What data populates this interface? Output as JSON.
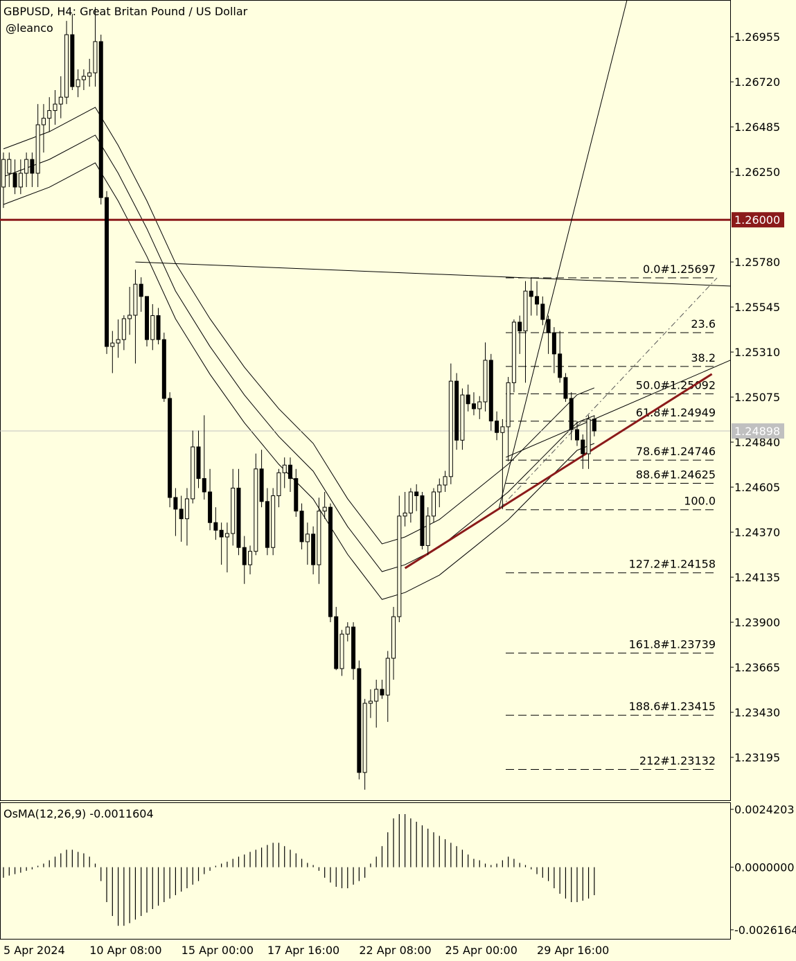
{
  "chart_data": [
    {
      "type": "candlestick",
      "title": "GBPUSD, H4:  Great Britan Pound / US Dollar",
      "subtitle": "@leanco",
      "up_color": "#ffffe0",
      "down_color": "#000000",
      "wick_color": "#000000",
      "categories": [
        "5 Apr 2024",
        null,
        null,
        null,
        null,
        null,
        null,
        null,
        null,
        null,
        null,
        null,
        null,
        null,
        null,
        "10 Apr 08:00",
        null,
        null,
        null,
        null,
        null,
        null,
        null,
        null,
        null,
        null,
        null,
        null,
        null,
        null,
        null,
        "15 Apr 00:00",
        null,
        null,
        null,
        null,
        null,
        null,
        null,
        null,
        null,
        null,
        null,
        null,
        null,
        null,
        "17 Apr 16:00",
        null,
        null,
        null,
        null,
        null,
        null,
        null,
        null,
        null,
        null,
        null,
        null,
        null,
        null,
        null,
        "22 Apr 08:00",
        null,
        null,
        null,
        null,
        null,
        null,
        null,
        null,
        null,
        null,
        null,
        null,
        null,
        null,
        "25 Apr 00:00",
        null,
        null,
        null,
        null,
        null,
        null,
        null,
        null,
        null,
        null,
        null,
        null,
        null,
        null,
        null,
        "29 Apr 16:00",
        null,
        null,
        null,
        null,
        null,
        null,
        null,
        null,
        null,
        null
      ],
      "ohlc": [
        [
          1.26171,
          1.26351,
          1.26062,
          1.26315
        ],
        [
          1.26243,
          1.26351,
          1.26171,
          1.26315
        ],
        [
          1.26243,
          1.26315,
          1.26134,
          1.26171
        ],
        [
          1.26171,
          1.26315,
          1.26134,
          1.26243
        ],
        [
          1.26243,
          1.26351,
          1.26171,
          1.26315
        ],
        [
          1.26315,
          1.26351,
          1.26171,
          1.26243
        ],
        [
          1.26243,
          1.26604,
          1.26171,
          1.26496
        ],
        [
          1.26496,
          1.26604,
          1.26351,
          1.2653
        ],
        [
          1.2653,
          1.2664,
          1.2646,
          1.2657
        ],
        [
          1.2657,
          1.26677,
          1.26496,
          1.26604
        ],
        [
          1.26604,
          1.26749,
          1.2653,
          1.2664
        ],
        [
          1.2664,
          1.27038,
          1.26604,
          1.26966
        ],
        [
          1.26966,
          1.27074,
          1.26677,
          1.26695
        ],
        [
          1.26695,
          1.26785,
          1.2664,
          1.26731
        ],
        [
          1.26731,
          1.26785,
          1.26677,
          1.26749
        ],
        [
          1.26749,
          1.2684,
          1.26695,
          1.26767
        ],
        [
          1.26767,
          1.2711,
          1.26695,
          1.2693
        ],
        [
          1.2693,
          1.26966,
          1.2608,
          1.26116
        ],
        [
          1.26116,
          1.2615,
          1.253,
          1.25339
        ],
        [
          1.25339,
          1.2542,
          1.252,
          1.25357
        ],
        [
          1.25357,
          1.2548,
          1.2528,
          1.25375
        ],
        [
          1.25375,
          1.25502,
          1.2532,
          1.25484
        ],
        [
          1.25484,
          1.2565,
          1.254,
          1.25502
        ],
        [
          1.25502,
          1.2574,
          1.2525,
          1.25664
        ],
        [
          1.25664,
          1.257,
          1.2552,
          1.256
        ],
        [
          1.256,
          1.256,
          1.25339,
          1.25375
        ],
        [
          1.25375,
          1.2556,
          1.2532,
          1.255
        ],
        [
          1.255,
          1.2554,
          1.2535,
          1.25375
        ],
        [
          1.25375,
          1.25411,
          1.2505,
          1.25068
        ],
        [
          1.25068,
          1.251,
          1.245,
          1.24551
        ],
        [
          1.24551,
          1.246,
          1.2435,
          1.2449
        ],
        [
          1.2449,
          1.2456,
          1.2432,
          1.2444
        ],
        [
          1.2444,
          1.246,
          1.243,
          1.24544
        ],
        [
          1.24544,
          1.249,
          1.2452,
          1.24815
        ],
        [
          1.24815,
          1.249,
          1.246,
          1.2465
        ],
        [
          1.2465,
          1.2498,
          1.2454,
          1.2458
        ],
        [
          1.2458,
          1.247,
          1.2438,
          1.2442
        ],
        [
          1.2442,
          1.245,
          1.2433,
          1.2438
        ],
        [
          1.2438,
          1.2442,
          1.242,
          1.24345
        ],
        [
          1.24345,
          1.2442,
          1.2416,
          1.24363
        ],
        [
          1.24363,
          1.247,
          1.243,
          1.246
        ],
        [
          1.246,
          1.247,
          1.2425,
          1.2429
        ],
        [
          1.2429,
          1.2435,
          1.241,
          1.242
        ],
        [
          1.242,
          1.243,
          1.2415,
          1.2427
        ],
        [
          1.2427,
          1.2478,
          1.2425,
          1.247
        ],
        [
          1.247,
          1.248,
          1.245,
          1.2453
        ],
        [
          1.2453,
          1.246,
          1.2425,
          1.2429
        ],
        [
          1.2429,
          1.246,
          1.2425,
          1.2456
        ],
        [
          1.2456,
          1.247,
          1.245,
          1.2468
        ],
        [
          1.2468,
          1.2476,
          1.246,
          1.2472
        ],
        [
          1.2472,
          1.2476,
          1.2458,
          1.2465
        ],
        [
          1.2465,
          1.247,
          1.2445,
          1.2448
        ],
        [
          1.2448,
          1.2452,
          1.2428,
          1.2432
        ],
        [
          1.2432,
          1.2442,
          1.242,
          1.2436
        ],
        [
          1.2436,
          1.244,
          1.2415,
          1.242
        ],
        [
          1.242,
          1.2455,
          1.241,
          1.2448
        ],
        [
          1.2448,
          1.2458,
          1.2444,
          1.245
        ],
        [
          1.245,
          1.2452,
          1.239,
          1.23929
        ],
        [
          1.23929,
          1.2398,
          1.2365,
          1.23658
        ],
        [
          1.23658,
          1.2386,
          1.2362,
          1.23838
        ],
        [
          1.23838,
          1.239,
          1.238,
          1.23875
        ],
        [
          1.23875,
          1.239,
          1.236,
          1.23658
        ],
        [
          1.23658,
          1.237,
          1.2308,
          1.23116
        ],
        [
          1.23116,
          1.235,
          1.23026,
          1.23477
        ],
        [
          1.23477,
          1.2355,
          1.234,
          1.23488
        ],
        [
          1.23488,
          1.236,
          1.2335,
          1.2355
        ],
        [
          1.2355,
          1.236,
          1.235,
          1.2352
        ],
        [
          1.2352,
          1.2375,
          1.2338,
          1.23712
        ],
        [
          1.23712,
          1.2398,
          1.236,
          1.23929
        ],
        [
          1.23929,
          1.2456,
          1.239,
          1.24454
        ],
        [
          1.24454,
          1.2458,
          1.244,
          1.2447
        ],
        [
          1.2447,
          1.246,
          1.2442,
          1.2458
        ],
        [
          1.2458,
          1.2462,
          1.2448,
          1.2456
        ],
        [
          1.2456,
          1.2458,
          1.2428,
          1.243
        ],
        [
          1.243,
          1.245,
          1.2425,
          1.24454
        ],
        [
          1.24454,
          1.246,
          1.2442,
          1.2458
        ],
        [
          1.2458,
          1.2465,
          1.245,
          1.24616
        ],
        [
          1.24616,
          1.2469,
          1.2458,
          1.2466
        ],
        [
          1.2466,
          1.2525,
          1.2462,
          1.25158
        ],
        [
          1.25158,
          1.252,
          1.248,
          1.2485
        ],
        [
          1.2485,
          1.2512,
          1.248,
          1.25086
        ],
        [
          1.25086,
          1.2514,
          1.25,
          1.2504
        ],
        [
          1.2504,
          1.251,
          1.2498,
          1.25014
        ],
        [
          1.25014,
          1.2508,
          1.2496,
          1.2505
        ],
        [
          1.2505,
          1.2536,
          1.25,
          1.25267
        ],
        [
          1.25267,
          1.253,
          1.249,
          1.2495
        ],
        [
          1.2495,
          1.25,
          1.2485,
          1.2489
        ],
        [
          1.2489,
          1.2496,
          1.2449,
          1.2492
        ],
        [
          1.2492,
          1.2518,
          1.2474,
          1.2515
        ],
        [
          1.2515,
          1.2548,
          1.251,
          1.25466
        ],
        [
          1.25466,
          1.255,
          1.253,
          1.2542
        ],
        [
          1.2542,
          1.2568,
          1.2515,
          1.25628
        ],
        [
          1.25628,
          1.257,
          1.255,
          1.256
        ],
        [
          1.256,
          1.2568,
          1.255,
          1.2556
        ],
        [
          1.2556,
          1.256,
          1.2545,
          1.2548
        ],
        [
          1.2548,
          1.255,
          1.253,
          1.25411
        ],
        [
          1.25411,
          1.2544,
          1.252,
          1.253
        ],
        [
          1.253,
          1.2542,
          1.2515,
          1.25177
        ],
        [
          1.25177,
          1.252,
          1.2505,
          1.25068
        ],
        [
          1.25068,
          1.251,
          1.2485,
          1.24905
        ],
        [
          1.24905,
          1.2495,
          1.2482,
          1.24851
        ],
        [
          1.24851,
          1.2488,
          1.247,
          1.24779
        ],
        [
          1.24779,
          1.2498,
          1.247,
          1.2496
        ],
        [
          1.2496,
          1.2498,
          1.2487,
          1.24898
        ]
      ],
      "ylim": [
        1.22971,
        1.27147
      ],
      "yticks": [
        1.26955,
        {
          "value": 1.2672,
          "label": "1.26720"
        },
        1.26485,
        {
          "value": 1.2625,
          "label": "1.26250"
        },
        {
          "value": 1.2578,
          "label": "1.25780"
        },
        1.25545,
        {
          "value": 1.2531,
          "label": "1.25310"
        },
        1.25075,
        {
          "value": 1.2484,
          "label": "1.24840"
        },
        1.24605,
        {
          "value": 1.2437,
          "label": "1.24370"
        },
        1.24135,
        {
          "value": 1.239,
          "label": "1.23900"
        },
        1.23665,
        {
          "value": 1.2343,
          "label": "1.23430"
        },
        1.23195
      ],
      "moving_averages": [
        {
          "color": "#000000",
          "x": [
            0,
            8,
            16,
            20,
            25,
            30,
            36,
            42,
            48,
            54,
            60,
            66,
            70,
            76,
            82,
            88,
            94,
            100,
            103
          ],
          "values": [
            1.2637,
            1.2646,
            1.26587,
            1.26388,
            1.26099,
            1.25773,
            1.25484,
            1.25231,
            1.25014,
            1.24833,
            1.24544,
            1.24309,
            1.24345,
            1.24436,
            1.2458,
            1.24725,
            1.24906,
            1.25087,
            1.25123
          ]
        },
        {
          "color": "#000000",
          "x": [
            0,
            8,
            16,
            20,
            25,
            30,
            36,
            42,
            48,
            54,
            60,
            66,
            70,
            76,
            82,
            88,
            94,
            100,
            103
          ],
          "values": [
            1.26225,
            1.26315,
            1.26442,
            1.26243,
            1.25954,
            1.25628,
            1.25339,
            1.25086,
            1.24869,
            1.24688,
            1.24399,
            1.24164,
            1.242,
            1.24291,
            1.24435,
            1.2458,
            1.24761,
            1.24942,
            1.24978
          ]
        },
        {
          "color": "#000000",
          "x": [
            0,
            8,
            16,
            20,
            25,
            30,
            36,
            42,
            48,
            54,
            60,
            66,
            70,
            76,
            82,
            88,
            94,
            100,
            103
          ],
          "values": [
            1.2608,
            1.2617,
            1.26297,
            1.26098,
            1.25809,
            1.25483,
            1.25194,
            1.24941,
            1.24724,
            1.24543,
            1.24254,
            1.24019,
            1.24055,
            1.24146,
            1.2429,
            1.24435,
            1.24616,
            1.24797,
            1.24833
          ]
        }
      ],
      "hlines": [
        {
          "value": 1.26,
          "label": "1.26000",
          "color": "#8b1a1a",
          "width": 3
        },
        {
          "value": 1.24898,
          "label": "1.24898",
          "color": "#c0c0c0",
          "width": 1
        }
      ],
      "fib_levels": [
        {
          "label": "0.0#1.25697",
          "value": 1.25697
        },
        {
          "label": "23.6",
          "value": 1.25411
        },
        {
          "label": "38.2",
          "value": 1.25235
        },
        {
          "label": "50.0#1.25092",
          "value": 1.25092
        },
        {
          "label": "61.8#1.24949",
          "value": 1.24949
        },
        {
          "label": "78.6#1.24746",
          "value": 1.24746
        },
        {
          "label": "88.6#1.24625",
          "value": 1.24625
        },
        {
          "label": "100.0",
          "value": 1.24487
        },
        {
          "label": "127.2#1.24158",
          "value": 1.24158
        },
        {
          "label": "161.8#1.23739",
          "value": 1.23739
        },
        {
          "label": "188.6#1.23415",
          "value": 1.23415
        },
        {
          "label": "212#1.23132",
          "value": 1.23132
        }
      ],
      "trendlines": [
        {
          "color": "#8b1a1a",
          "width": 3,
          "dash": false,
          "x": [
            70,
            123.5
          ],
          "values": [
            1.24182,
            1.25195
          ]
        },
        {
          "color": "#000000",
          "width": 1,
          "dash": false,
          "x": [
            23,
            126.7
          ],
          "values": [
            1.2578,
            1.25654
          ]
        },
        {
          "color": "#000000",
          "width": 1,
          "dash": false,
          "x": [
            86.4,
            108.7
          ],
          "values": [
            1.24497,
            1.27147
          ]
        },
        {
          "color": "#000000",
          "width": 1,
          "dash": false,
          "x": [
            87.6,
            126.7
          ],
          "values": [
            1.24761,
            1.25267
          ]
        },
        {
          "color": "#555555",
          "width": 1,
          "dash": true,
          "x": [
            86.6,
            124.4
          ],
          "values": [
            1.24497,
            1.25697
          ]
        }
      ]
    },
    {
      "type": "bar",
      "title": "OsMA(12,26,9) -0.0011604",
      "color": "#000000",
      "values": [
        -0.00044,
        -0.00035,
        -0.00029,
        -0.00023,
        -0.00015,
        -9e-05,
        6e-05,
        0.00015,
        0.00029,
        0.00044,
        0.00058,
        0.00073,
        0.00073,
        0.00064,
        0.00058,
        0.00044,
        0.00015,
        -0.00058,
        -0.00146,
        -0.00204,
        -0.00245,
        -0.00245,
        -0.00234,
        -0.00219,
        -0.00204,
        -0.0019,
        -0.00175,
        -0.00161,
        -0.00146,
        -0.00131,
        -0.00117,
        -0.00102,
        -0.00088,
        -0.00073,
        -0.00058,
        -0.00029,
        -0.00015,
        6e-05,
        0.00015,
        0.00023,
        0.00035,
        0.00044,
        0.00053,
        0.00064,
        0.00073,
        0.00082,
        0.00093,
        0.00102,
        0.00102,
        0.00088,
        0.00073,
        0.00058,
        0.00035,
        0.00018,
        9e-05,
        -0.00015,
        -0.00044,
        -0.00064,
        -0.00082,
        -0.00088,
        -0.00088,
        -0.00073,
        -0.00058,
        -0.00044,
        0.00015,
        0.00044,
        0.00088,
        0.00146,
        0.00204,
        0.00222,
        0.00222,
        0.00204,
        0.0019,
        0.00175,
        0.00161,
        0.00146,
        0.00131,
        0.00117,
        0.00102,
        0.00088,
        0.00073,
        0.00053,
        0.00035,
        0.00029,
        0.00015,
        9e-05,
        0.00015,
        0.00029,
        0.00044,
        0.00035,
        0.00018,
        9e-05,
        -9e-05,
        -0.00029,
        -0.00044,
        -0.00058,
        -0.00088,
        -0.00111,
        -0.00131,
        -0.00146,
        -0.00146,
        -0.0014,
        -0.00131,
        -0.00117
      ],
      "ylim": [
        -0.002995,
        0.002712
      ],
      "yticks": [
        {
          "value": 0.0024203,
          "label": "0.0024203"
        },
        {
          "value": 0,
          "label": "0.0000000"
        },
        {
          "value": -0.0026164,
          "label": "-0.0026164"
        }
      ]
    }
  ]
}
